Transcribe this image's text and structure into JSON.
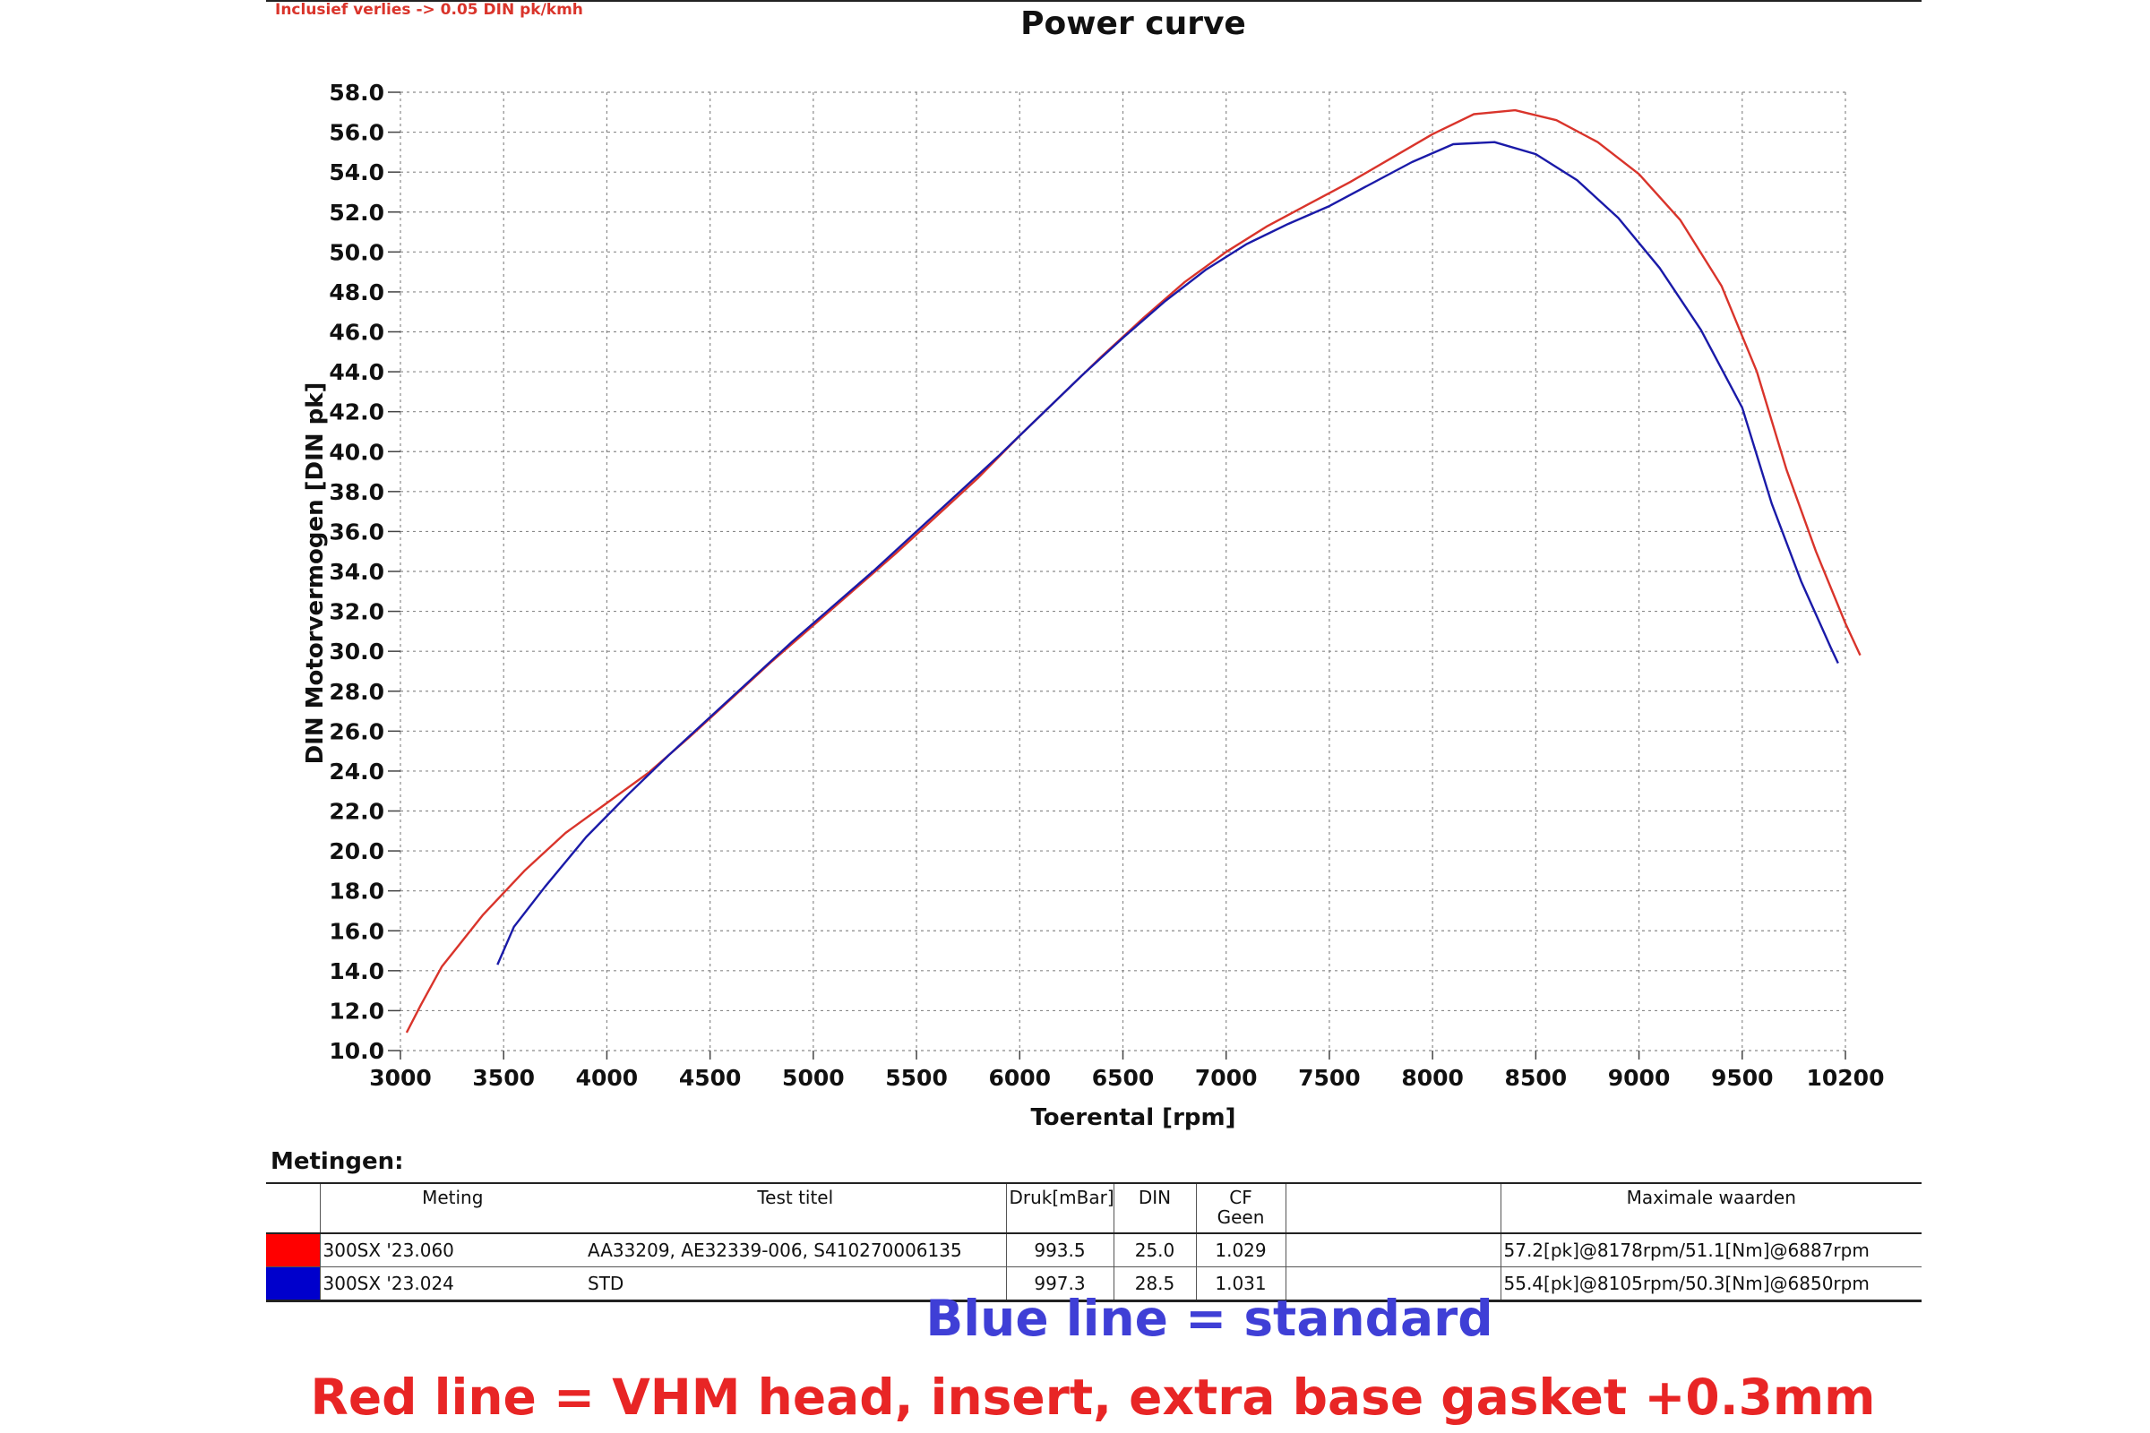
{
  "header": {
    "loss_note": "Inclusief verlies -> 0.05 DIN pk/kmh"
  },
  "chart_data": {
    "type": "line",
    "title": "Power curve",
    "xlabel": "Toerental [rpm]",
    "ylabel": "DIN Motorvermogen [DIN pk]",
    "xlim": [
      3000,
      10200
    ],
    "ylim": [
      10.0,
      58.0
    ],
    "x_ticks": [
      3000,
      3500,
      4000,
      4500,
      5000,
      5500,
      6000,
      6500,
      7000,
      7500,
      8000,
      8500,
      9000,
      9500,
      10200
    ],
    "y_ticks": [
      "10.0",
      "12.0",
      "14.0",
      "16.0",
      "18.0",
      "20.0",
      "22.0",
      "24.0",
      "26.0",
      "28.0",
      "30.0",
      "32.0",
      "34.0",
      "36.0",
      "38.0",
      "40.0",
      "42.0",
      "44.0",
      "46.0",
      "48.0",
      "50.0",
      "52.0",
      "54.0",
      "56.0",
      "58.0"
    ],
    "grid": true,
    "series": [
      {
        "name": "300SX '23.060",
        "color": "#d9342b",
        "points": [
          [
            3030,
            10.9
          ],
          [
            3100,
            12.3
          ],
          [
            3200,
            14.2
          ],
          [
            3400,
            16.8
          ],
          [
            3600,
            19.0
          ],
          [
            3800,
            20.9
          ],
          [
            4000,
            22.4
          ],
          [
            4200,
            23.9
          ],
          [
            4400,
            25.7
          ],
          [
            4600,
            27.6
          ],
          [
            4800,
            29.5
          ],
          [
            5000,
            31.3
          ],
          [
            5200,
            33.1
          ],
          [
            5400,
            34.9
          ],
          [
            5600,
            36.8
          ],
          [
            5800,
            38.7
          ],
          [
            6000,
            40.8
          ],
          [
            6200,
            42.8
          ],
          [
            6400,
            44.8
          ],
          [
            6600,
            46.7
          ],
          [
            6800,
            48.5
          ],
          [
            7000,
            50.0
          ],
          [
            7200,
            51.3
          ],
          [
            7400,
            52.4
          ],
          [
            7600,
            53.5
          ],
          [
            7800,
            54.7
          ],
          [
            8000,
            55.9
          ],
          [
            8200,
            56.9
          ],
          [
            8400,
            57.1
          ],
          [
            8600,
            56.6
          ],
          [
            8800,
            55.5
          ],
          [
            9000,
            53.9
          ],
          [
            9200,
            51.6
          ],
          [
            9400,
            48.3
          ],
          [
            9600,
            44.0
          ],
          [
            9800,
            39.1
          ],
          [
            10000,
            35.0
          ],
          [
            10200,
            31.4
          ],
          [
            10300,
            29.8
          ]
        ]
      },
      {
        "name": "300SX '23.024",
        "color": "#1a1aa8",
        "points": [
          [
            3470,
            14.3
          ],
          [
            3550,
            16.2
          ],
          [
            3700,
            18.2
          ],
          [
            3900,
            20.7
          ],
          [
            4100,
            22.8
          ],
          [
            4300,
            24.8
          ],
          [
            4500,
            26.7
          ],
          [
            4700,
            28.6
          ],
          [
            4900,
            30.5
          ],
          [
            5100,
            32.3
          ],
          [
            5300,
            34.1
          ],
          [
            5500,
            36.0
          ],
          [
            5700,
            37.9
          ],
          [
            5900,
            39.8
          ],
          [
            6100,
            41.8
          ],
          [
            6300,
            43.8
          ],
          [
            6500,
            45.7
          ],
          [
            6700,
            47.5
          ],
          [
            6900,
            49.1
          ],
          [
            7100,
            50.4
          ],
          [
            7300,
            51.4
          ],
          [
            7500,
            52.3
          ],
          [
            7700,
            53.4
          ],
          [
            7900,
            54.5
          ],
          [
            8100,
            55.4
          ],
          [
            8300,
            55.5
          ],
          [
            8500,
            54.9
          ],
          [
            8700,
            53.6
          ],
          [
            8900,
            51.7
          ],
          [
            9100,
            49.2
          ],
          [
            9300,
            46.1
          ],
          [
            9500,
            42.2
          ],
          [
            9700,
            37.4
          ],
          [
            9900,
            33.5
          ],
          [
            10100,
            30.2
          ],
          [
            10150,
            29.4
          ]
        ]
      }
    ]
  },
  "measurements": {
    "title": "Metingen:",
    "headers": {
      "meting": "Meting",
      "test_titel": "Test titel",
      "druk": "Druk[mBar]",
      "din": "DIN",
      "cf_line1": "CF",
      "cf_line2": "Geen",
      "blank": "",
      "max": "Maximale waarden"
    },
    "rows": [
      {
        "color": "#ff0000",
        "meting": "300SX '23.060",
        "test_titel": "AA33209, AE32339-006, S410270006135",
        "druk": "993.5",
        "din": "25.0",
        "cf": "1.029",
        "blank": "",
        "max": "57.2[pk]@8178rpm/51.1[Nm]@6887rpm"
      },
      {
        "color": "#0000cc",
        "meting": "300SX '23.024",
        "test_titel": "STD",
        "druk": "997.3",
        "din": "28.5",
        "cf": "1.031",
        "blank": "",
        "max": "55.4[pk]@8105rpm/50.3[Nm]@6850rpm"
      }
    ]
  },
  "captions": {
    "blue": "Blue line = standard",
    "red": "Red line = VHM head, insert, extra base gasket +0.3mm"
  }
}
